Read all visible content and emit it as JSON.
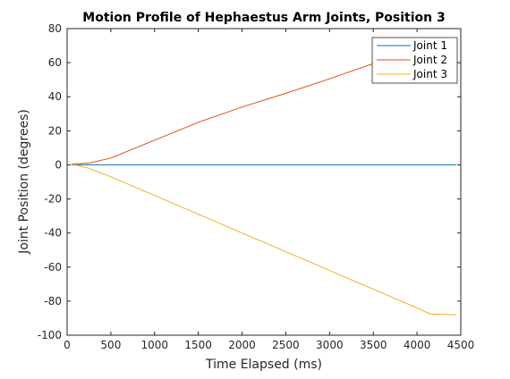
{
  "chart_data": {
    "type": "line",
    "title": "Motion Profile of Hephaestus Arm Joints, Position 3",
    "xlabel": "Time Elapsed (ms)",
    "ylabel": "Joint Position (degrees)",
    "xlim": [
      0,
      4500
    ],
    "ylim": [
      -100,
      80
    ],
    "xticks": [
      0,
      500,
      1000,
      1500,
      2000,
      2500,
      3000,
      3500,
      4000,
      4500
    ],
    "yticks": [
      -100,
      -80,
      -60,
      -40,
      -20,
      0,
      20,
      40,
      60,
      80
    ],
    "grid": false,
    "legend_position": "top-right",
    "series": [
      {
        "name": "Joint 1",
        "color": "#0072BD",
        "x": [
          50,
          500,
          1000,
          1500,
          2000,
          2500,
          3000,
          3500,
          4000,
          4450
        ],
        "y": [
          0,
          0,
          0,
          0,
          0,
          0,
          0,
          0,
          0,
          0
        ]
      },
      {
        "name": "Joint 2",
        "color": "#D95319",
        "x": [
          50,
          250,
          500,
          1000,
          1500,
          2000,
          2500,
          3000,
          3500,
          4000,
          4150,
          4450
        ],
        "y": [
          0.5,
          1,
          4,
          14.5,
          25,
          34,
          42,
          50.5,
          59.5,
          66.5,
          68,
          69
        ]
      },
      {
        "name": "Joint 3",
        "color": "#EDB120",
        "x": [
          50,
          250,
          500,
          1000,
          1500,
          2000,
          2500,
          3000,
          3500,
          4000,
          4150,
          4450
        ],
        "y": [
          0.5,
          -2,
          -7,
          -18,
          -29,
          -40,
          -51,
          -62,
          -73,
          -84,
          -87.5,
          -88
        ]
      }
    ]
  }
}
